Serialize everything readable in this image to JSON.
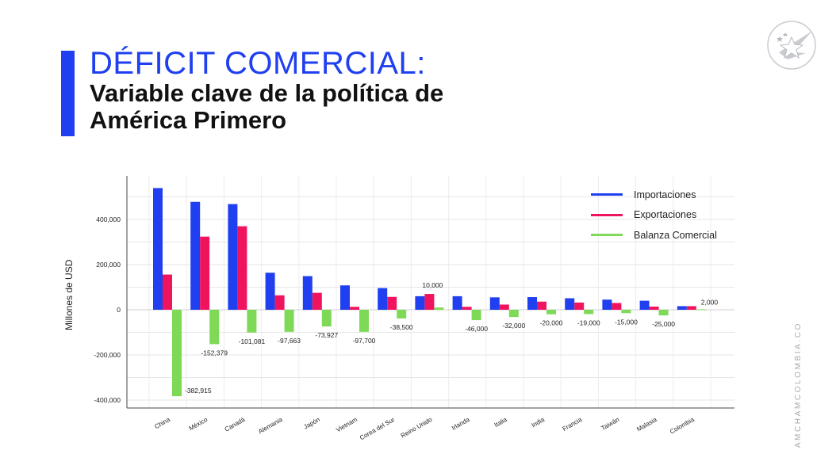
{
  "header": {
    "title": "DÉFICIT COMERCIAL:",
    "subtitle": "Variable clave de la política de América Primero"
  },
  "brand": {
    "side_text": "AMCHAMCOLOMBIA.CO",
    "accent_color": "#1f3ff0"
  },
  "chart_data": {
    "type": "bar",
    "ylabel": "Millones de USD",
    "ylim": [
      -400000,
      550000
    ],
    "yticks": [
      400000,
      200000,
      0,
      -200000,
      -400000
    ],
    "ytick_labels": [
      "400,000",
      "200,000",
      "0",
      "-200,000",
      "-400,000"
    ],
    "categories": [
      "China",
      "México",
      "Canadá",
      "Alemania",
      "Japón",
      "Vietnam",
      "Corea del Sur",
      "Reino Unido",
      "Irlanda",
      "Italia",
      "India",
      "Francia",
      "Taiwán",
      "Malasia",
      "Colombia"
    ],
    "series": [
      {
        "name": "Importaciones",
        "color": "#1f3ff0",
        "values": [
          539000,
          478000,
          468000,
          164000,
          149000,
          108000,
          96000,
          60000,
          60000,
          55000,
          56000,
          51000,
          45000,
          40000,
          16000
        ]
      },
      {
        "name": "Exportaciones",
        "color": "#f0145e",
        "values": [
          156000,
          324000,
          370000,
          64000,
          75000,
          13000,
          57000,
          70000,
          13000,
          23000,
          36000,
          32000,
          30000,
          14000,
          16000
        ]
      },
      {
        "name": "Balanza Comercial",
        "color": "#7ed957",
        "values": [
          -382915,
          -152379,
          -101081,
          -97663,
          -73927,
          -97700,
          -38500,
          10000,
          -46000,
          -32000,
          -20000,
          -19000,
          -15000,
          -25000,
          2000
        ]
      }
    ],
    "data_labels": [
      "-382,915",
      "-152,379",
      "-101,081",
      "-97,663",
      "-73,927",
      "-97,700",
      "-38,500",
      "10,000",
      "-46,000",
      "-32,000",
      "-20,000",
      "-19,000",
      "-15,000",
      "-25,000",
      "2,000"
    ],
    "legend": {
      "position": "top-right"
    }
  }
}
